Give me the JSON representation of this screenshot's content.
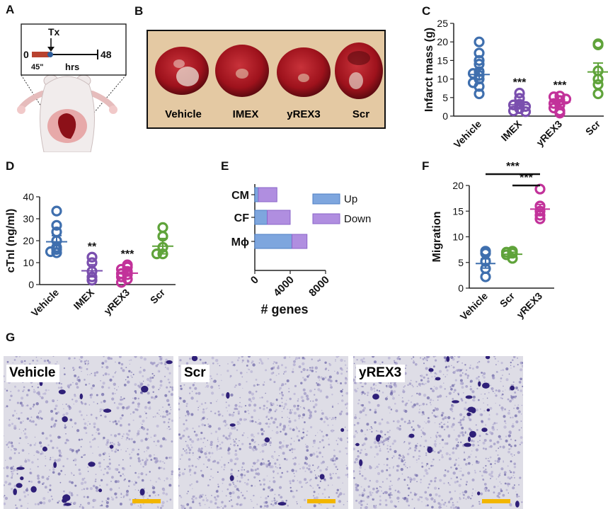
{
  "panels": {
    "a": "A",
    "b": "B",
    "c": "C",
    "d": "D",
    "e": "E",
    "f": "F",
    "g": "G"
  },
  "colors": {
    "vehicle": "#3f6fae",
    "imex": "#7a4fae",
    "yrex3": "#c2329a",
    "scr": "#5fa33a",
    "up": "#7ea6de",
    "down": "#b08ee0",
    "scale_bar": "#f2b600",
    "heart": "#8c1018"
  },
  "panel_a": {
    "tx_label": "Tx",
    "start_label": "0",
    "end_label": "48",
    "occlusion_label": "45\"",
    "units_label": "hrs"
  },
  "panel_b": {
    "labels": [
      "Vehicle",
      "IMEX",
      "yREX3",
      "Scr"
    ]
  },
  "chart_data": [
    {
      "id": "C",
      "type": "scatter",
      "ylabel": "Infarct mass (g)",
      "ylim": [
        0,
        25
      ],
      "yticks": [
        0,
        5,
        10,
        15,
        20,
        25
      ],
      "categories": [
        "Vehicle",
        "IMEX",
        "yREX3",
        "Scr"
      ],
      "groups": [
        {
          "name": "Vehicle",
          "mean": 11.2,
          "sem": 1.4,
          "points": [
            20,
            17,
            15,
            14,
            12,
            11.5,
            11,
            10,
            9,
            8,
            6
          ]
        },
        {
          "name": "IMEX",
          "mean": 3.1,
          "sem": 0.8,
          "points": [
            6.2,
            4.8,
            3.2,
            3,
            2.6,
            2,
            1.4,
            1.2
          ]
        },
        {
          "name": "yREX3",
          "mean": 3.8,
          "sem": 0.7,
          "points": [
            5.4,
            5.2,
            4.6,
            4.2,
            3.4,
            3,
            2.2,
            1.4,
            0.8
          ]
        },
        {
          "name": "Scr",
          "mean": 11.9,
          "sem": 2.4,
          "points": [
            19.5,
            19.2,
            12.2,
            10,
            8.5,
            6
          ]
        }
      ],
      "significance": [
        "",
        "***",
        "***",
        ""
      ]
    },
    {
      "id": "D",
      "type": "scatter",
      "ylabel": "cTnI (ng/ml)",
      "ylim": [
        0,
        40
      ],
      "yticks": [
        0,
        10,
        20,
        30,
        40
      ],
      "categories": [
        "Vehicle",
        "IMEX",
        "yREX3",
        "Scr"
      ],
      "groups": [
        {
          "name": "Vehicle",
          "mean": 19.5,
          "sem": 2.8,
          "points": [
            33.5,
            27,
            24,
            20,
            17,
            16,
            15,
            14.5
          ]
        },
        {
          "name": "IMEX",
          "mean": 6.3,
          "sem": 2.8,
          "points": [
            12.5,
            10,
            6,
            3.5,
            2
          ]
        },
        {
          "name": "yREX3",
          "mean": 5.2,
          "sem": 1.1,
          "points": [
            9,
            8,
            7,
            6,
            5,
            4.5,
            3.5,
            2.5,
            1
          ]
        },
        {
          "name": "Scr",
          "mean": 17.5,
          "sem": 3.5,
          "points": [
            26,
            22,
            17,
            14,
            14
          ]
        }
      ],
      "significance": [
        "",
        "**",
        "***",
        ""
      ]
    },
    {
      "id": "E",
      "type": "bar",
      "orientation": "horizontal",
      "stacked": true,
      "xlabel": "# genes",
      "xlim": [
        0,
        8000
      ],
      "xticks": [
        0,
        4000,
        8000
      ],
      "categories": [
        "CM",
        "CF",
        "Mϕ"
      ],
      "series": [
        {
          "name": "Up",
          "values": [
            400,
            1400,
            4200
          ]
        },
        {
          "name": "Down",
          "values": [
            2100,
            2600,
            1700
          ]
        }
      ],
      "legend_position": "right"
    },
    {
      "id": "F",
      "type": "scatter",
      "ylabel": "Migration",
      "ylim": [
        0,
        20
      ],
      "yticks": [
        0,
        5,
        10,
        15,
        20
      ],
      "categories": [
        "Vehicle",
        "Scr",
        "yREX3"
      ],
      "groups": [
        {
          "name": "Vehicle",
          "mean": 4.8,
          "sem": 0.9,
          "points": [
            7.2,
            6.8,
            5.2,
            3.8,
            2.2
          ]
        },
        {
          "name": "Scr",
          "mean": 6.6,
          "sem": 0.4,
          "points": [
            7.2,
            7,
            6.8,
            6.5,
            5.8
          ]
        },
        {
          "name": "yREX3",
          "mean": 15.4,
          "sem": 0.9,
          "points": [
            19.3,
            16,
            15,
            14.2,
            13.5
          ]
        }
      ],
      "comparisons": [
        {
          "from": "Vehicle",
          "to": "yREX3",
          "label": "***"
        },
        {
          "from": "Scr",
          "to": "yREX3",
          "label": "***"
        }
      ]
    }
  ],
  "panel_g": {
    "labels": [
      "Vehicle",
      "Scr",
      "yREX3"
    ]
  }
}
